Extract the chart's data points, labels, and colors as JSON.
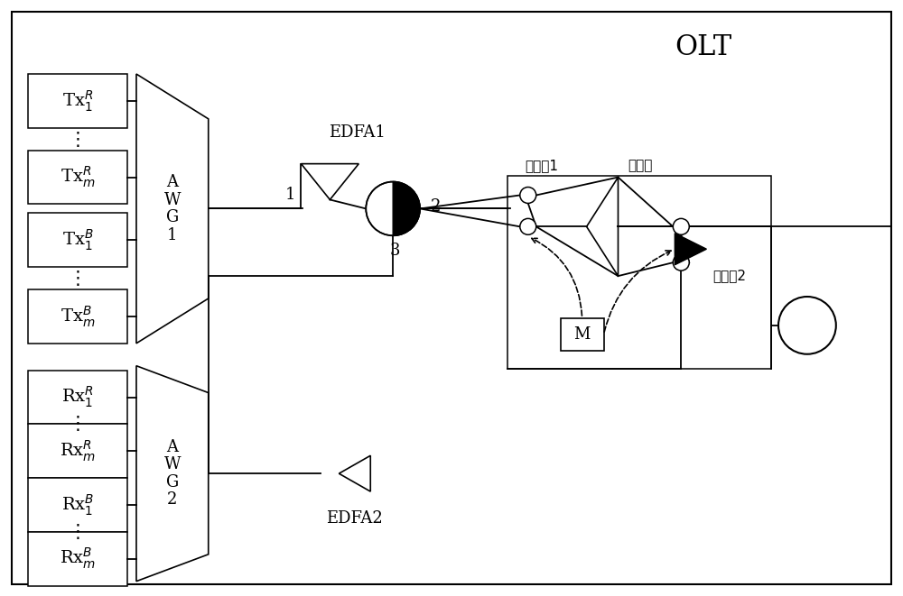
{
  "bg_color": "#ffffff",
  "title": "OLT",
  "fig_width": 10.0,
  "fig_height": 6.61,
  "tx_labels": [
    "Tx$_1^R$",
    "Tx$_m^R$",
    "Tx$_1^B$",
    "Tx$_m^B$"
  ],
  "rx_labels": [
    "Rx$_1^R$",
    "Rx$_m^R$",
    "Rx$_1^B$",
    "Rx$_m^B$"
  ],
  "edfa1_label": "EDFA1",
  "edfa2_label": "EDFA2",
  "label1": "1",
  "label2": "2",
  "label3": "3",
  "guangkaiguan1": "光开关1",
  "guangkaiguan2": "光开关2",
  "fenguangqi": "分光器",
  "M_label": "M"
}
